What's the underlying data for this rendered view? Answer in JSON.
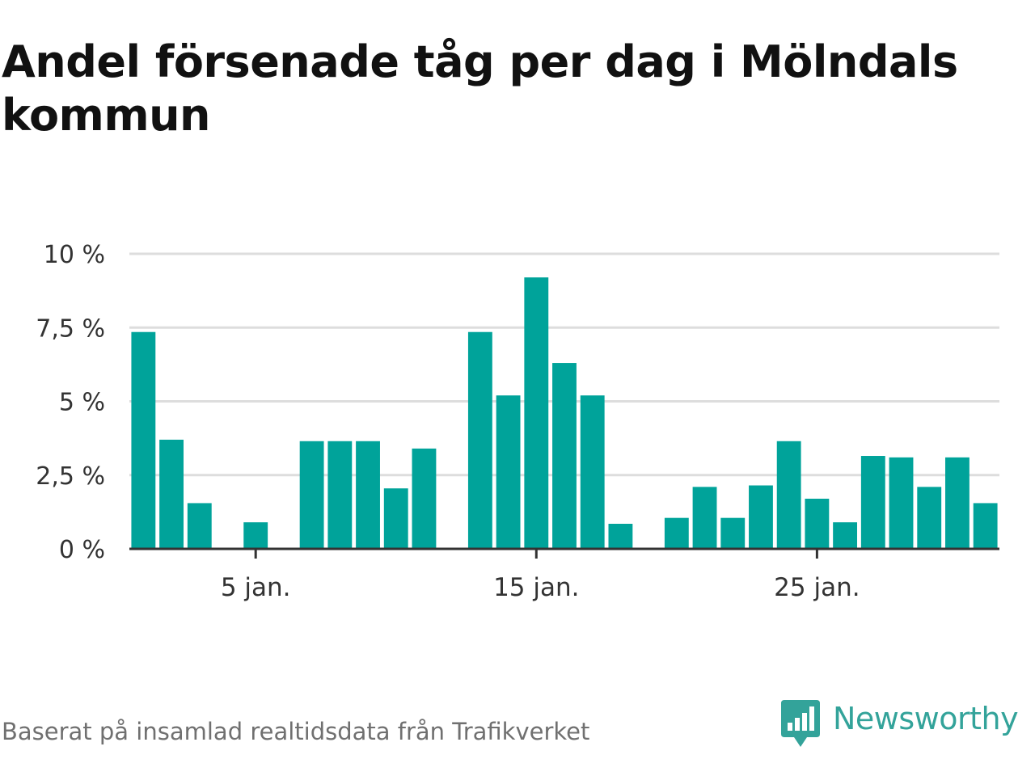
{
  "title": "Andel försenade tåg per dag i Mölndals kommun",
  "source": "Baserat på insamlad realtidsdata från Trafikverket",
  "brand": {
    "name": "Newsworthy",
    "icon": "bar-chart-pin-icon"
  },
  "colors": {
    "bar": "#00a39a",
    "grid": "#dddddd",
    "axis": "#333333",
    "brand": "#33a39a"
  },
  "chart_data": {
    "type": "bar",
    "title": "Andel försenade tåg per dag i Mölndals kommun",
    "xlabel": "",
    "ylabel": "",
    "x_unit": "day of January",
    "x": [
      1,
      2,
      3,
      4,
      5,
      6,
      7,
      8,
      9,
      10,
      11,
      12,
      13,
      14,
      15,
      16,
      17,
      18,
      19,
      20,
      21,
      22,
      23,
      24,
      25,
      26,
      27,
      28,
      29,
      30,
      31
    ],
    "values": [
      7.35,
      3.7,
      1.55,
      0,
      0.9,
      0,
      3.65,
      3.65,
      3.65,
      2.05,
      3.4,
      0,
      7.35,
      5.2,
      9.2,
      6.3,
      5.2,
      0.85,
      0,
      1.05,
      2.1,
      1.05,
      2.15,
      3.65,
      1.7,
      0.9,
      3.15,
      3.1,
      2.1,
      3.1,
      1.55
    ],
    "x_ticks": [
      5,
      15,
      25
    ],
    "x_tick_labels": [
      "5 jan.",
      "15 jan.",
      "25 jan."
    ],
    "y_ticks": [
      0,
      2.5,
      5,
      7.5,
      10
    ],
    "y_tick_labels": [
      "0 %",
      "2,5 %",
      "5 %",
      "7,5 %",
      "10 %"
    ],
    "ylim": [
      0,
      10
    ],
    "xlim": [
      0.5,
      31.5
    ],
    "grid": true,
    "legend": "none"
  }
}
